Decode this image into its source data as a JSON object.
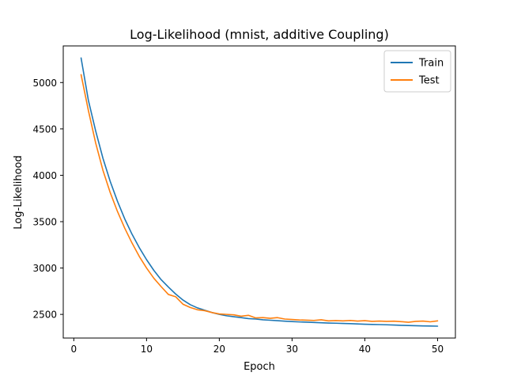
{
  "chart_data": {
    "type": "line",
    "title": "Log-Likelihood (mnist, additive Coupling)",
    "xlabel": "Epoch",
    "ylabel": "Log-Likelihood",
    "xlim": [
      -1.45,
      52.45
    ],
    "ylim": [
      2245,
      5395
    ],
    "xticks": [
      0,
      10,
      20,
      30,
      40,
      50
    ],
    "yticks": [
      2500,
      3000,
      3500,
      4000,
      4500,
      5000
    ],
    "grid": false,
    "legend_position": "top-right",
    "x": [
      1,
      2,
      3,
      4,
      5,
      6,
      7,
      8,
      9,
      10,
      11,
      12,
      13,
      14,
      15,
      16,
      17,
      18,
      19,
      20,
      21,
      22,
      23,
      24,
      25,
      26,
      27,
      28,
      29,
      30,
      31,
      32,
      33,
      34,
      35,
      36,
      37,
      38,
      39,
      40,
      41,
      42,
      43,
      44,
      45,
      46,
      47,
      48,
      49,
      50
    ],
    "series": [
      {
        "name": "Train",
        "color": "#1f77b4",
        "values": [
          5265,
          4810,
          4480,
          4185,
          3935,
          3720,
          3530,
          3365,
          3220,
          3090,
          2975,
          2875,
          2795,
          2720,
          2655,
          2605,
          2570,
          2545,
          2520,
          2500,
          2485,
          2475,
          2465,
          2455,
          2450,
          2442,
          2437,
          2432,
          2427,
          2423,
          2419,
          2416,
          2413,
          2410,
          2407,
          2405,
          2402,
          2400,
          2397,
          2394,
          2392,
          2390,
          2388,
          2385,
          2382,
          2380,
          2378,
          2376,
          2375,
          2373
        ]
      },
      {
        "name": "Test",
        "color": "#ff7f0e",
        "values": [
          5085,
          4700,
          4350,
          4055,
          3815,
          3610,
          3430,
          3270,
          3125,
          3000,
          2890,
          2800,
          2715,
          2690,
          2610,
          2575,
          2550,
          2540,
          2520,
          2505,
          2500,
          2495,
          2480,
          2490,
          2462,
          2465,
          2458,
          2465,
          2450,
          2445,
          2440,
          2438,
          2435,
          2442,
          2430,
          2433,
          2430,
          2434,
          2428,
          2432,
          2425,
          2428,
          2425,
          2427,
          2422,
          2415,
          2425,
          2428,
          2420,
          2430
        ]
      }
    ]
  }
}
